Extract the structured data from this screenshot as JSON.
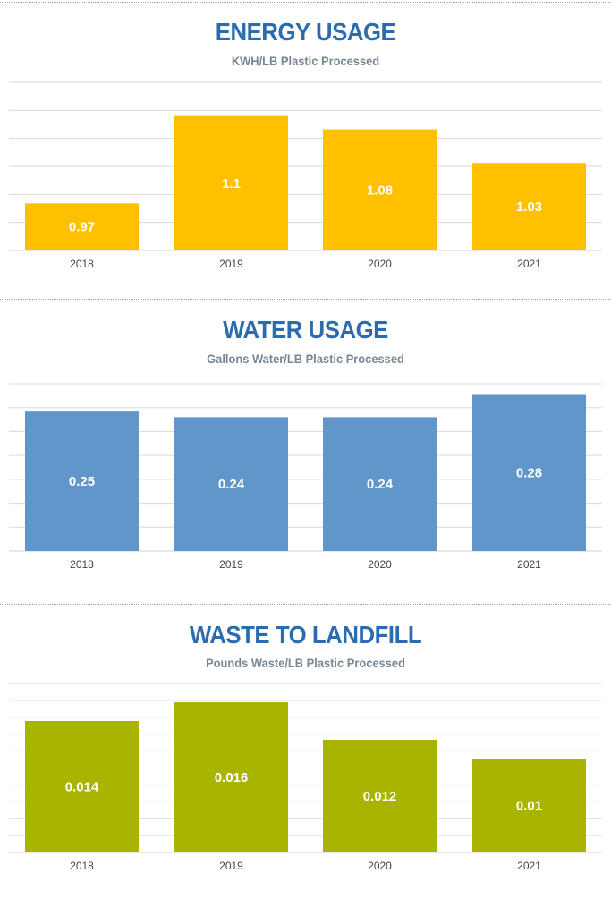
{
  "colors": {
    "energy": "#ffc000",
    "water": "#6096c9",
    "waste": "#a8b400",
    "title": "#2b6cb0",
    "subtitle": "#7a8792",
    "grid": "#d9d9d9"
  },
  "chart_data": [
    {
      "type": "bar",
      "title": "ENERGY USAGE",
      "subtitle": "KWH/LB Plastic Processed",
      "categories": [
        "2018",
        "2019",
        "2020",
        "2021"
      ],
      "values": [
        0.97,
        1.1,
        1.08,
        1.03
      ],
      "value_labels": [
        "0.97",
        "1.1",
        "1.08",
        "1.03"
      ],
      "ylim": [
        0.9,
        1.15
      ],
      "grid": true
    },
    {
      "type": "bar",
      "title": "WATER USAGE",
      "subtitle": "Gallons Water/LB Plastic Processed",
      "categories": [
        "2018",
        "2019",
        "2020",
        "2021"
      ],
      "values": [
        0.25,
        0.24,
        0.24,
        0.28
      ],
      "value_labels": [
        "0.25",
        "0.24",
        "0.24",
        "0.28"
      ],
      "ylim": [
        0,
        0.3
      ],
      "grid": true
    },
    {
      "type": "bar",
      "title": "WASTE TO LANDFILL",
      "subtitle": "Pounds Waste/LB Plastic Processed",
      "categories": [
        "2018",
        "2019",
        "2020",
        "2021"
      ],
      "values": [
        0.014,
        0.016,
        0.012,
        0.01
      ],
      "value_labels": [
        "0.014",
        "0.016",
        "0.012",
        "0.01"
      ],
      "ylim": [
        0,
        0.018
      ],
      "grid": true
    }
  ]
}
